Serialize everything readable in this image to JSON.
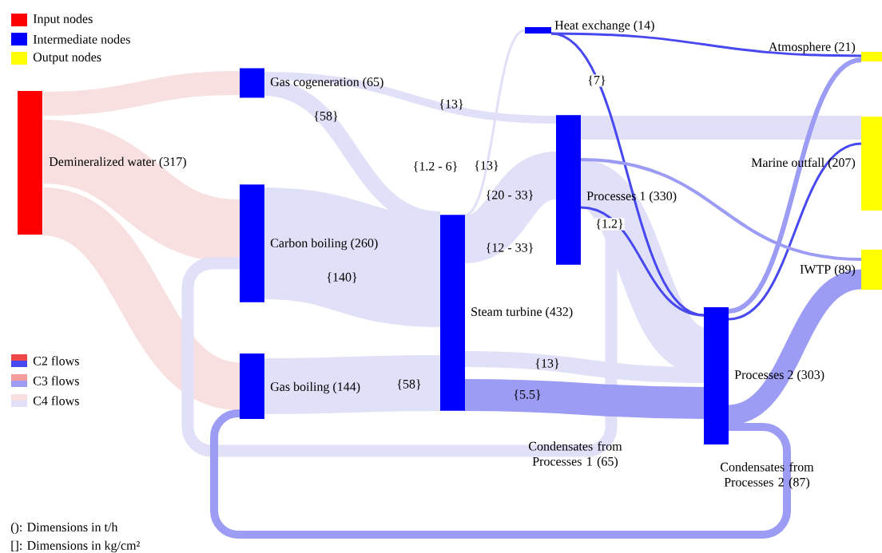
{
  "chart_data": {
    "type": "other",
    "categories": [
      "Demineralized water",
      "Gas cogeneration",
      "Carbon boiling",
      "Gas boiling",
      "Steam turbine",
      "Heat exchange",
      "Processes 1",
      "Processes 2",
      "Condensates from Processes 1",
      "Condensates from Processes 2",
      "Atmosphere",
      "Marine outfall",
      "IWTP"
    ],
    "series": [
      {
        "name": "Input nodes",
        "color": "#ff0000",
        "values": [
          317,
          null,
          null,
          null,
          null,
          null,
          null,
          null,
          null,
          null,
          null,
          null,
          null
        ],
        "value_labels": [
          "(317)",
          null,
          null,
          null,
          null,
          null,
          null,
          null,
          null,
          null,
          null,
          null,
          null
        ]
      },
      {
        "name": "Intermediate nodes",
        "color": "#0000ff",
        "values": [
          null,
          65,
          260,
          144,
          432,
          14,
          330,
          303,
          65,
          87,
          null,
          null,
          null
        ],
        "value_labels": [
          null,
          "(65)",
          "(260)",
          "(144)",
          "(432)",
          "(14)",
          "(330)",
          "(303)",
          "(65)",
          "(87)",
          null,
          null,
          null
        ]
      },
      {
        "name": "Output nodes",
        "color": "#ffff00",
        "values": [
          null,
          null,
          null,
          null,
          null,
          null,
          null,
          null,
          null,
          null,
          21,
          207,
          89
        ],
        "value_labels": [
          null,
          null,
          null,
          null,
          null,
          null,
          null,
          null,
          null,
          null,
          "(21)",
          "(207)",
          "(89)"
        ]
      },
      {
        "name": "C2 flows",
        "color": "#4848f0",
        "values": [
          null,
          null,
          null,
          null,
          null,
          null,
          null,
          null,
          null,
          null,
          null,
          null,
          null
        ]
      },
      {
        "name": "C3 flows",
        "color": "#9c9cf5",
        "values": [
          null,
          null,
          null,
          null,
          null,
          null,
          null,
          null,
          null,
          null,
          null,
          null,
          null
        ]
      },
      {
        "name": "C4 flows",
        "color": "#e0e0f8",
        "values": [
          null,
          null,
          null,
          null,
          null,
          null,
          null,
          null,
          null,
          null,
          null,
          null,
          null
        ]
      }
    ],
    "annotations": [
      "{58}",
      "{13}",
      "{1.2 - 6}",
      "{13}",
      "{20 - 33}",
      "{7}",
      "{1.2}",
      "{12 - 33}",
      "{140}",
      "{58}",
      "{13}",
      "{5.5}",
      "(): Dimensions in t/h",
      "[]: Dimensions in kg/cm²"
    ]
  }
}
